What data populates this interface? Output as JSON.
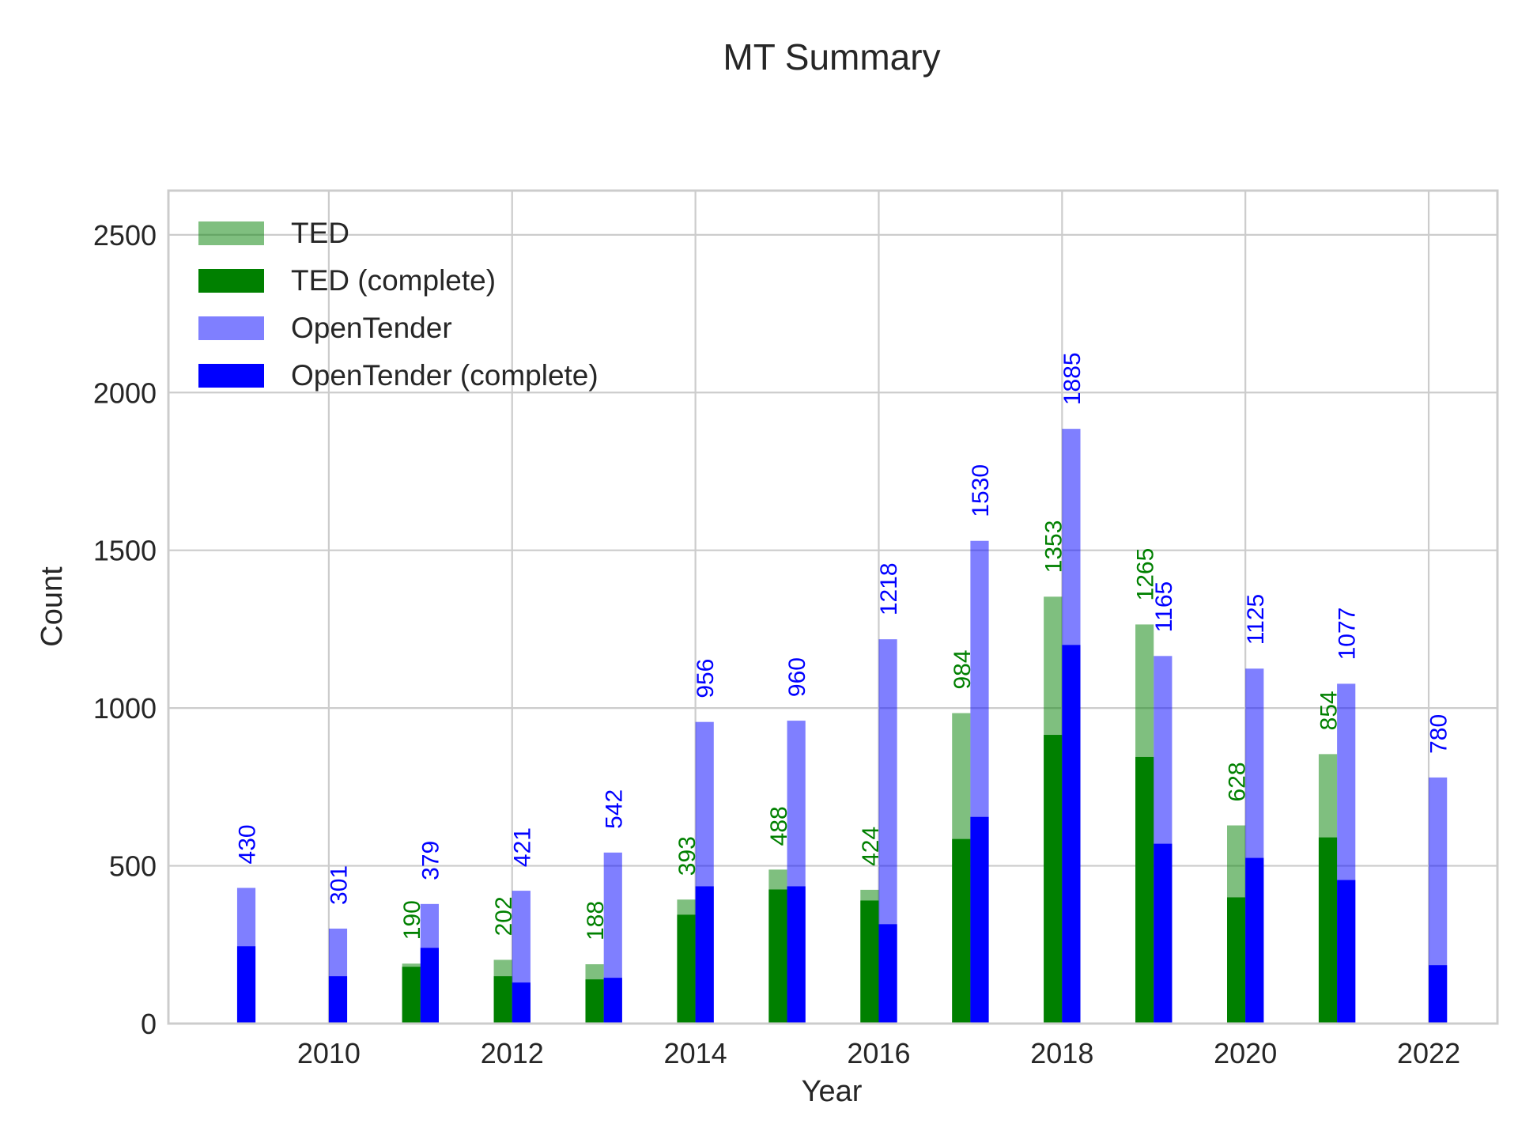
{
  "chart_data": {
    "type": "bar",
    "title": "MT Summary",
    "xlabel": "Year",
    "ylabel": "Count",
    "xlim": [
      2008.25,
      2022.75
    ],
    "ylim": [
      0,
      2640
    ],
    "x_ticks": [
      2010,
      2012,
      2014,
      2016,
      2018,
      2020,
      2022
    ],
    "y_ticks": [
      0,
      500,
      1000,
      1500,
      2000,
      2500
    ],
    "grid": true,
    "legend_position": "top-left",
    "years": [
      2009,
      2010,
      2011,
      2012,
      2013,
      2014,
      2015,
      2016,
      2017,
      2018,
      2019,
      2020,
      2021,
      2022
    ],
    "series": [
      {
        "name": "TED",
        "color": "#008000",
        "opacity": 0.5,
        "offset": -0.1,
        "values": [
          null,
          null,
          190,
          202,
          188,
          393,
          488,
          424,
          984,
          1353,
          1265,
          628,
          854,
          null
        ]
      },
      {
        "name": "TED (complete)",
        "color": "#008000",
        "opacity": 1,
        "offset": -0.1,
        "values": [
          null,
          null,
          180,
          150,
          140,
          345,
          425,
          390,
          585,
          915,
          845,
          400,
          590,
          null
        ]
      },
      {
        "name": "OpenTender",
        "color": "#0000ff",
        "opacity": 0.5,
        "offset": 0.1,
        "values": [
          430,
          301,
          379,
          421,
          542,
          956,
          960,
          1218,
          1530,
          1885,
          1165,
          1125,
          1077,
          780
        ]
      },
      {
        "name": "OpenTender (complete)",
        "color": "#0000ff",
        "opacity": 1,
        "offset": 0.1,
        "values": [
          245,
          150,
          240,
          130,
          145,
          435,
          435,
          315,
          655,
          1200,
          570,
          525,
          455,
          185
        ]
      }
    ],
    "bar_labels": [
      {
        "series": "TED",
        "color": "#008000",
        "values": [
          null,
          null,
          190,
          202,
          188,
          393,
          488,
          424,
          984,
          1353,
          1265,
          628,
          854,
          null
        ]
      },
      {
        "series": "OpenTender",
        "color": "#0000ff",
        "values": [
          430,
          301,
          379,
          421,
          542,
          956,
          960,
          1218,
          1530,
          1885,
          1165,
          1125,
          1077,
          780
        ]
      }
    ]
  }
}
